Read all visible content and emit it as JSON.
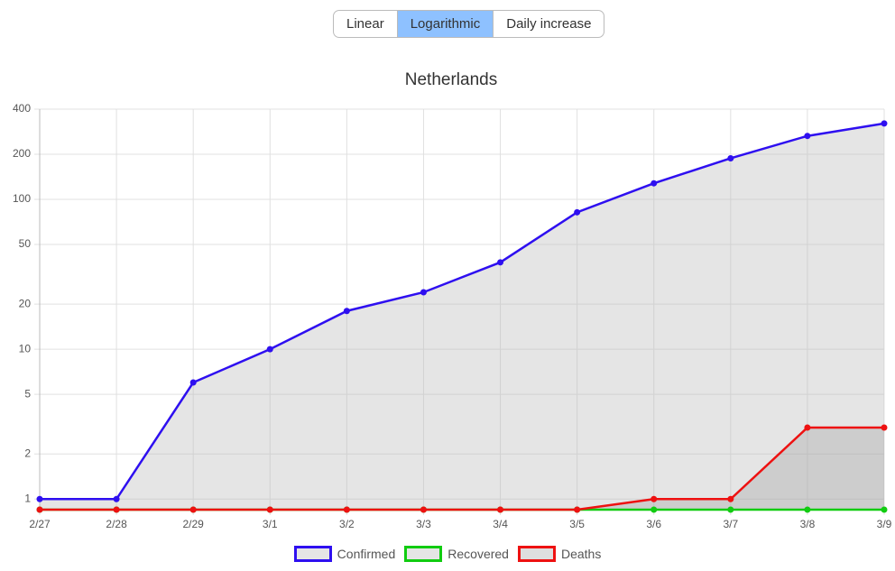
{
  "controls": {
    "buttons": [
      "Linear",
      "Logarithmic",
      "Daily increase"
    ],
    "active": 1
  },
  "chart_data": {
    "type": "line",
    "title": "Netherlands",
    "scale": "log",
    "grid": true,
    "legend": "bottom",
    "categories": [
      "2/27",
      "2/28",
      "2/29",
      "3/1",
      "3/2",
      "3/3",
      "3/4",
      "3/5",
      "3/6",
      "3/7",
      "3/8",
      "3/9"
    ],
    "series": [
      {
        "name": "Confirmed",
        "color": "#2e0ff0",
        "fill": "rgba(190,190,190,0.4)",
        "values": [
          1,
          1,
          6,
          10,
          18,
          24,
          38,
          82,
          128,
          188,
          265,
          321
        ]
      },
      {
        "name": "Recovered",
        "color": "#11cc11",
        "fill": "rgba(190,190,190,0.4)",
        "values": [
          0,
          0,
          0,
          0,
          0,
          0,
          0,
          0,
          0,
          0,
          0,
          0
        ]
      },
      {
        "name": "Deaths",
        "color": "#ee1111",
        "fill": "rgba(160,160,160,0.35)",
        "values": [
          0,
          0,
          0,
          0,
          0,
          0,
          0,
          0,
          1,
          1,
          3,
          3
        ]
      }
    ],
    "ylim": [
      0.85,
      400
    ],
    "yticks": [
      1,
      2,
      5,
      10,
      20,
      50,
      100,
      200,
      400
    ]
  }
}
